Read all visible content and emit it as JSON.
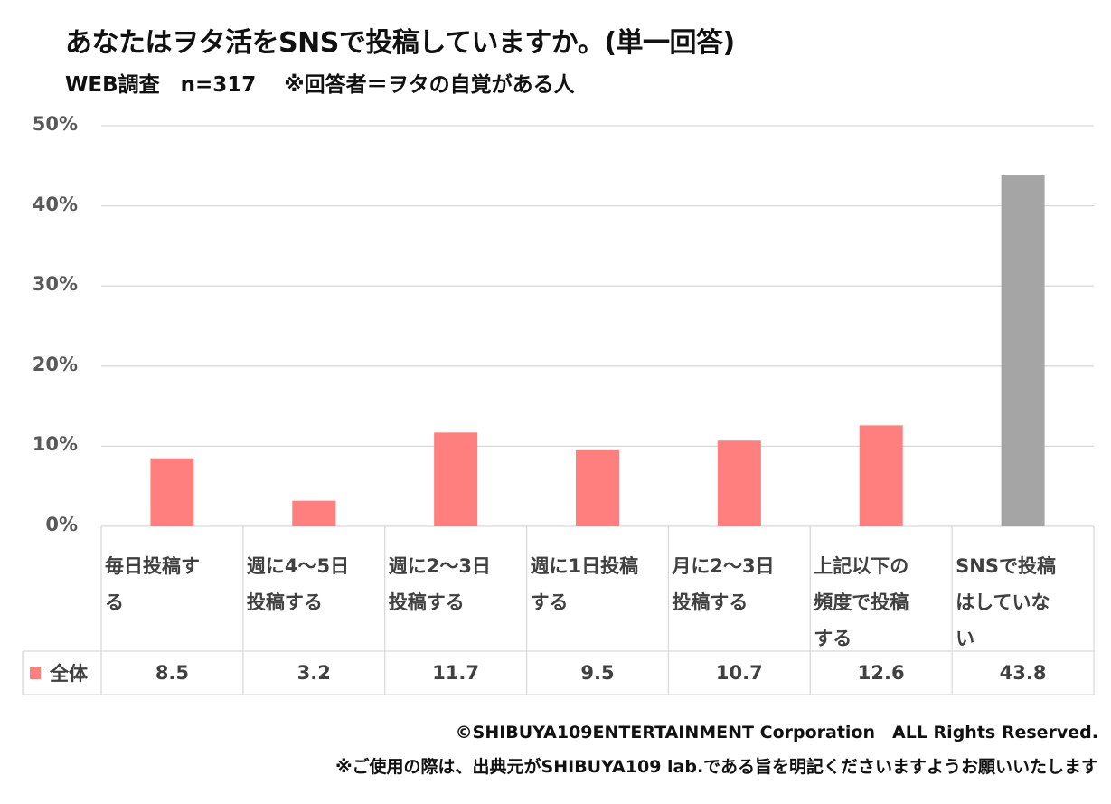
{
  "title": "あなたはヲタ活をSNSで投稿していますか。(単一回答)",
  "subtitle": "WEB調査　n=317　 ※回答者＝ヲタの自覚がある人",
  "chart_data": {
    "type": "bar",
    "title": "あなたはヲタ活をSNSで投稿していますか。(単一回答)",
    "categories": [
      "毎日投稿する",
      "週に4～5日投稿する",
      "週に2～3日投稿する",
      "週に1日投稿する",
      "月に2～3日投稿する",
      "上記以下の頻度で投稿する",
      "SNSで投稿はしていない"
    ],
    "category_lines": [
      [
        "毎日投稿す",
        "る"
      ],
      [
        "週に4～5日",
        "投稿する"
      ],
      [
        "週に2～3日",
        "投稿する"
      ],
      [
        "週に1日投稿",
        "する"
      ],
      [
        "月に2～3日",
        "投稿する"
      ],
      [
        "上記以下の",
        "頻度で投稿",
        "する"
      ],
      [
        "SNSで投稿",
        "はしていな",
        "い"
      ]
    ],
    "series": [
      {
        "name": "全体",
        "values": [
          8.5,
          3.2,
          11.7,
          9.5,
          10.7,
          12.6,
          43.8
        ]
      }
    ],
    "value_labels": [
      "8.5",
      "3.2",
      "11.7",
      "9.5",
      "10.7",
      "12.6",
      "43.8"
    ],
    "ylim": [
      0,
      50
    ],
    "yticks": [
      "0%",
      "10%",
      "20%",
      "30%",
      "40%",
      "50%"
    ],
    "grid": true,
    "legend": "data-table-left",
    "colors": {
      "default": "#FF7F7F",
      "last": "#A5A5A5"
    }
  },
  "footer": {
    "copyright": "©SHIBUYA109ENTERTAINMENT Corporation　ALL Rights Reserved.",
    "note": "※ご使用の際は、出典元がSHIBUYA109 lab.である旨を明記くださいますようお願いいたします"
  }
}
